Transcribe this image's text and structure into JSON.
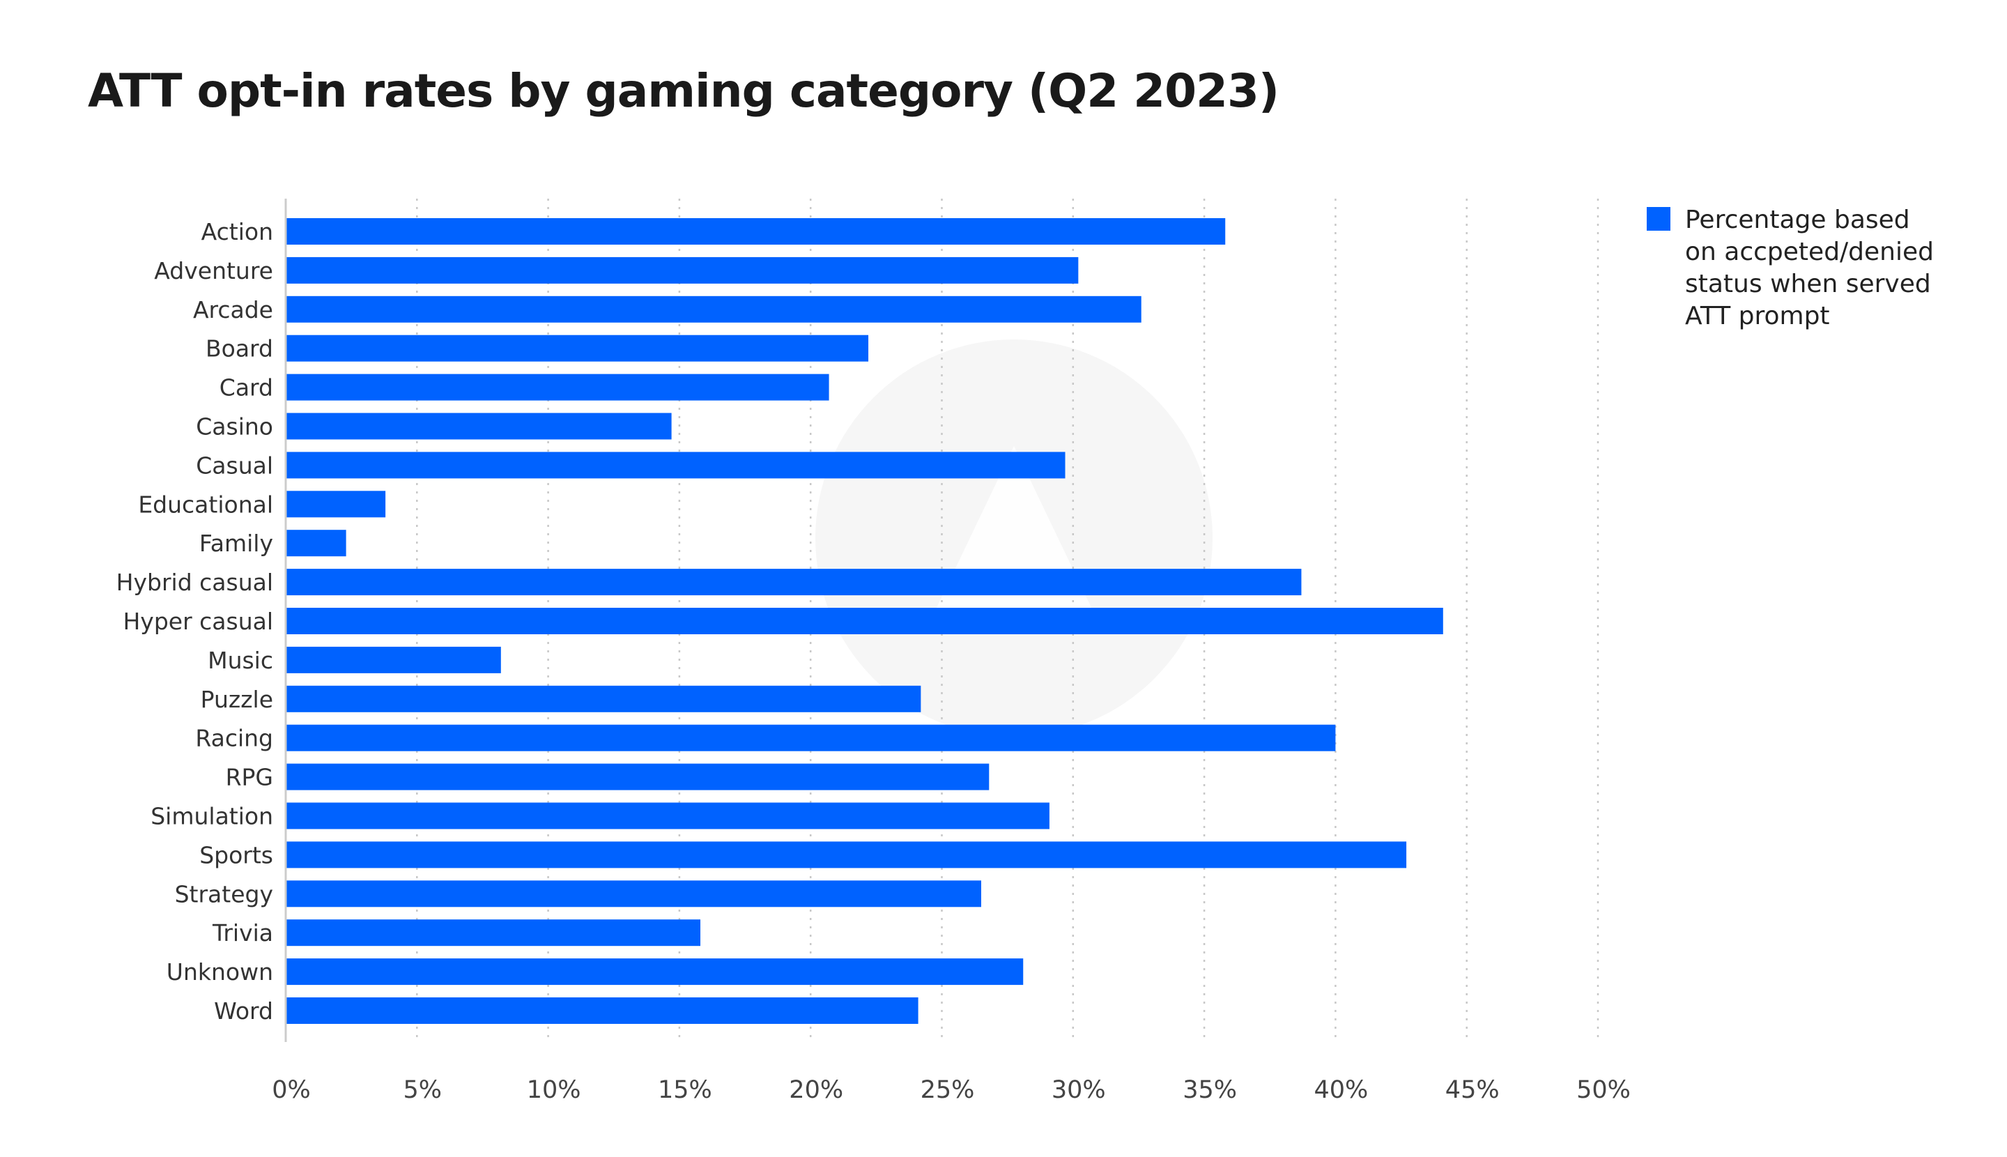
{
  "chart_data": {
    "type": "bar",
    "orientation": "horizontal",
    "title": "ATT opt-in rates by gaming category (Q2 2023)",
    "categories": [
      "Action",
      "Adventure",
      "Arcade",
      "Board",
      "Card",
      "Casino",
      "Casual",
      "Educational",
      "Family",
      "Hybrid casual",
      "Hyper casual",
      "Music",
      "Puzzle",
      "Racing",
      "RPG",
      "Simulation",
      "Sports",
      "Strategy",
      "Trivia",
      "Unknown",
      "Word"
    ],
    "series": [
      {
        "name": "Percentage based on accpeted/denied status when served ATT prompt",
        "legend_lines": [
          "Percentage based",
          "on accpeted/denied",
          "status when served",
          "ATT prompt"
        ],
        "color": "#0062ff",
        "values": [
          35.8,
          30.2,
          32.6,
          22.2,
          20.7,
          14.7,
          29.7,
          3.8,
          2.3,
          38.7,
          44.1,
          8.2,
          24.2,
          40.0,
          26.8,
          29.1,
          42.7,
          26.5,
          15.8,
          28.1,
          24.1
        ]
      }
    ],
    "xlim": [
      0,
      50
    ],
    "xticks": [
      0,
      5,
      10,
      15,
      20,
      25,
      30,
      35,
      40,
      45,
      50
    ],
    "xtick_labels": [
      "0%",
      "5%",
      "10%",
      "15%",
      "20%",
      "25%",
      "30%",
      "35%",
      "40%",
      "45%",
      "50%"
    ],
    "grid": "vertical dotted",
    "legend_position": "top-right"
  }
}
